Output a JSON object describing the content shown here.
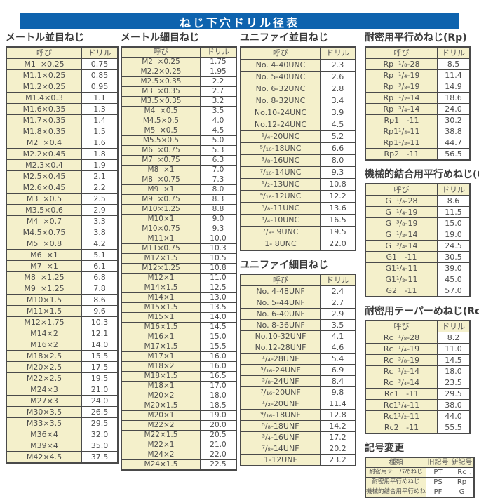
{
  "title": "ねじ下穴ドリル径表",
  "footer_mark": "- -",
  "sections": {
    "metric_coarse": {
      "title": "メートル並目ねじ",
      "col_headers": [
        "呼び",
        "ドリル"
      ],
      "rows": [
        [
          "M1  ×0.25",
          "0.75"
        ],
        [
          "M1.1×0.25",
          "0.85"
        ],
        [
          "M1.2×0.25",
          "0.95"
        ],
        [
          "M1.4×0.3",
          "1.1"
        ],
        [
          "M1.6×0.35",
          "1.3"
        ],
        [
          "M1.7×0.35",
          "1.4"
        ],
        [
          "M1.8×0.35",
          "1.5"
        ],
        [
          "M2  ×0.4",
          "1.6"
        ],
        [
          "M2.2×0.45",
          "1.8"
        ],
        [
          "M2.3×0.4",
          "1.9"
        ],
        [
          "M2.5×0.45",
          "2.1"
        ],
        [
          "M2.6×0.45",
          "2.2"
        ],
        [
          "M3  ×0.5",
          "2.5"
        ],
        [
          "M3.5×0.6",
          "2.9"
        ],
        [
          "M4  ×0.7",
          "3.3"
        ],
        [
          "M4.5×0.75",
          "3.8"
        ],
        [
          "M5  ×0.8",
          "4.2"
        ],
        [
          "M6  ×1",
          "5.1"
        ],
        [
          "M7  ×1",
          "6.1"
        ],
        [
          "M8  ×1.25",
          "6.8"
        ],
        [
          "M9  ×1.25",
          "7.8"
        ],
        [
          "M10×1.5",
          "8.6"
        ],
        [
          "M11×1.5",
          "9.6"
        ],
        [
          "M12×1.75",
          "10.3"
        ],
        [
          "M14×2",
          "12.1"
        ],
        [
          "M16×2",
          "14.0"
        ],
        [
          "M18×2.5",
          "15.5"
        ],
        [
          "M20×2.5",
          "17.5"
        ],
        [
          "M22×2.5",
          "19.5"
        ],
        [
          "M24×3",
          "21.0"
        ],
        [
          "M27×3",
          "24.0"
        ],
        [
          "M30×3.5",
          "26.5"
        ],
        [
          "M33×3.5",
          "29.5"
        ],
        [
          "M36×4",
          "32.0"
        ],
        [
          "M39×4",
          "35.0"
        ],
        [
          "M42×4.5",
          "37.5"
        ]
      ]
    },
    "metric_fine": {
      "title": "メートル細目ねじ",
      "col_headers": [
        "呼び",
        "ドリル"
      ],
      "rows": [
        [
          "M2  ×0.25",
          "1.75"
        ],
        [
          "M2.2×0.25",
          "1.95"
        ],
        [
          "M2.5×0.35",
          "2.2"
        ],
        [
          "M3  ×0.35",
          "2.7"
        ],
        [
          "M3.5×0.35",
          "3.2"
        ],
        [
          "M4  ×0.5",
          "3.5"
        ],
        [
          "M4.5×0.5",
          "4.0"
        ],
        [
          "M5  ×0.5",
          "4.5"
        ],
        [
          "M5.5×0.5",
          "5.0"
        ],
        [
          "M6  ×0.75",
          "5.3"
        ],
        [
          "M7  ×0.75",
          "6.3"
        ],
        [
          "M8  ×1",
          "7.0"
        ],
        [
          "M8  ×0.75",
          "7.3"
        ],
        [
          "M9  ×1",
          "8.0"
        ],
        [
          "M9  ×0.75",
          "8.3"
        ],
        [
          "M10×1.25",
          "8.8"
        ],
        [
          "M10×1",
          "9.0"
        ],
        [
          "M10×0.75",
          "9.3"
        ],
        [
          "M11×1",
          "10.0"
        ],
        [
          "M11×0.75",
          "10.3"
        ],
        [
          "M12×1.5",
          "10.5"
        ],
        [
          "M12×1.25",
          "10.8"
        ],
        [
          "M12×1",
          "11.0"
        ],
        [
          "M14×1.5",
          "12.5"
        ],
        [
          "M14×1",
          "13.0"
        ],
        [
          "M15×1.5",
          "13.5"
        ],
        [
          "M15×1",
          "14.0"
        ],
        [
          "M16×1.5",
          "14.5"
        ],
        [
          "M16×1",
          "15.0"
        ],
        [
          "M17×1.5",
          "15.5"
        ],
        [
          "M17×1",
          "16.0"
        ],
        [
          "M18×2",
          "16.0"
        ],
        [
          "M18×1.5",
          "16.5"
        ],
        [
          "M18×1",
          "17.0"
        ],
        [
          "M20×2",
          "18.0"
        ],
        [
          "M20×1.5",
          "18.5"
        ],
        [
          "M20×1",
          "19.0"
        ],
        [
          "M22×2",
          "20.0"
        ],
        [
          "M22×1.5",
          "20.5"
        ],
        [
          "M22×1",
          "21.0"
        ],
        [
          "M24×2",
          "22.0"
        ],
        [
          "M24×1.5",
          "22.5"
        ]
      ]
    },
    "unified_coarse": {
      "title": "ユニファイ並目ねじ",
      "col_headers": [
        "呼び",
        "ドリル"
      ],
      "rows": [
        [
          "No. 4-40UNC",
          "2.3"
        ],
        [
          "No. 5-40UNC",
          "2.6"
        ],
        [
          "No. 6-32UNC",
          "2.8"
        ],
        [
          "No. 8-32UNC",
          "3.4"
        ],
        [
          "No.10-24UNC",
          "3.9"
        ],
        [
          "No.12-24UNC",
          "4.5"
        ],
        [
          "¹/₄-20UNC",
          "5.2"
        ],
        [
          "⁵/₁₆-18UNC",
          "6.6"
        ],
        [
          "³/₈-16UNC",
          "8.0"
        ],
        [
          "⁷/₁₆-14UNC",
          "9.3"
        ],
        [
          "¹/₂-13UNC",
          "10.8"
        ],
        [
          "⁹/₁₆-12UNC",
          "12.2"
        ],
        [
          "⁵/₈-11UNC",
          "13.6"
        ],
        [
          "³/₄-10UNC",
          "16.5"
        ],
        [
          "⁷/₈- 9UNC",
          "19.5"
        ],
        [
          "1- 8UNC",
          "22.0"
        ]
      ]
    },
    "unified_fine": {
      "title": "ユニファイ細目ねじ",
      "col_headers": [
        "呼び",
        "ドリル"
      ],
      "rows": [
        [
          "No. 4-48UNF",
          "2.4"
        ],
        [
          "No. 5-44UNF",
          "2.7"
        ],
        [
          "No. 6-40UNF",
          "2.9"
        ],
        [
          "No. 8-36UNF",
          "3.5"
        ],
        [
          "No.10-32UNF",
          "4.1"
        ],
        [
          "No.12-28UNF",
          "4.6"
        ],
        [
          "¹/₄-28UNF",
          "5.4"
        ],
        [
          "⁵/₁₆-24UNF",
          "6.9"
        ],
        [
          "³/₈-24UNF",
          "8.4"
        ],
        [
          "⁷/₁₆-20UNF",
          "9.8"
        ],
        [
          "¹/₂-20UNF",
          "11.4"
        ],
        [
          "⁹/₁₆-18UNF",
          "12.8"
        ],
        [
          "⁵/₈-18UNF",
          "14.2"
        ],
        [
          "³/₄-16UNF",
          "17.2"
        ],
        [
          "⁷/₈-14UNF",
          "20.2"
        ],
        [
          "1-12UNF",
          "23.2"
        ]
      ]
    },
    "rp": {
      "title": "耐密用平行めねじ(Rp)",
      "col_headers": [
        "呼び",
        "ドリル"
      ],
      "rows": [
        [
          "Rp  ¹/₈-28",
          "8.5"
        ],
        [
          "Rp  ¹/₄-19",
          "11.4"
        ],
        [
          "Rp  ³/₈-19",
          "14.9"
        ],
        [
          "Rp  ¹/₂-14",
          "18.6"
        ],
        [
          "Rp  ³/₄-14",
          "24.0"
        ],
        [
          "Rp1   -11",
          "30.2"
        ],
        [
          "Rp1¹/₄-11",
          "38.8"
        ],
        [
          "Rp1¹/₂-11",
          "44.7"
        ],
        [
          "Rp2   -11",
          "56.5"
        ]
      ]
    },
    "g": {
      "title": "機械的結合用平行めねじ(G)",
      "col_headers": [
        "呼び",
        "ドリル"
      ],
      "rows": [
        [
          "G  ¹/₈-28",
          "8.6"
        ],
        [
          "G  ¹/₄-19",
          "11.5"
        ],
        [
          "G  ³/₈-19",
          "15.0"
        ],
        [
          "G  ¹/₂-14",
          "19.0"
        ],
        [
          "G  ³/₄-14",
          "24.5"
        ],
        [
          "G1   -11",
          "30.5"
        ],
        [
          "G1¹/₄-11",
          "39.0"
        ],
        [
          "G1¹/₂-11",
          "45.0"
        ],
        [
          "G2   -11",
          "57.0"
        ]
      ]
    },
    "rc": {
      "title": "耐密用テーパーめねじ(Rc)",
      "col_headers": [
        "呼び",
        "ドリル"
      ],
      "rows": [
        [
          "Rc  ¹/₈-28",
          "8.2"
        ],
        [
          "Rc  ¹/₄-19",
          "11.0"
        ],
        [
          "Rc  ³/₈-19",
          "14.5"
        ],
        [
          "Rc  ¹/₂-14",
          "18.0"
        ],
        [
          "Rc  ³/₄-14",
          "23.5"
        ],
        [
          "Rc1   -11",
          "29.5"
        ],
        [
          "Rc1¹/₄-11",
          "38.0"
        ],
        [
          "Rc1¹/₂-11",
          "44.0"
        ],
        [
          "Rc2   -11",
          "55.5"
        ]
      ]
    },
    "symbol_change": {
      "title": "記号変更",
      "col_headers": [
        "種類",
        "旧記号",
        "新記号"
      ],
      "rows": [
        [
          "耐密用テーパめねじ",
          "PT",
          "Rc"
        ],
        [
          "耐密用平行めねじ",
          "PS",
          "Rp"
        ],
        [
          "機械的結合用平行めねじ",
          "PF",
          "G"
        ]
      ]
    }
  }
}
